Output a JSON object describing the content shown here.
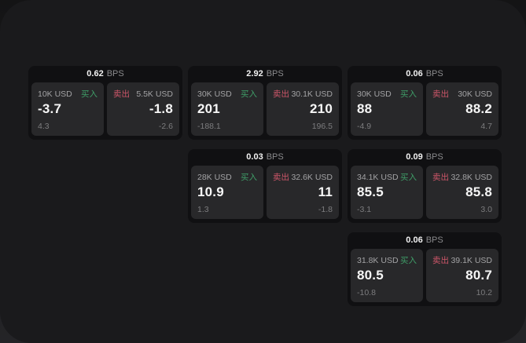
{
  "labels": {
    "bps_unit": "BPS",
    "buy": "买入",
    "sell": "卖出"
  },
  "colors": {
    "buy": "#3f9e68",
    "sell": "#cd5669",
    "window_bg": "#1a1a1c",
    "card_bg": "#101012",
    "panel_bg": "#28282a"
  },
  "cards": [
    {
      "bps": "0.62",
      "buy": {
        "amount": "10K USD",
        "value": "-3.7",
        "sub": "4.3"
      },
      "sell": {
        "amount": "5.5K USD",
        "value": "-1.8",
        "sub": "-2.6"
      }
    },
    {
      "bps": "2.92",
      "buy": {
        "amount": "30K USD",
        "value": "201",
        "sub": "-188.1"
      },
      "sell": {
        "amount": "30.1K USD",
        "value": "210",
        "sub": "196.5"
      }
    },
    {
      "bps": "0.06",
      "buy": {
        "amount": "30K USD",
        "value": "88",
        "sub": "-4.9"
      },
      "sell": {
        "amount": "30K USD",
        "value": "88.2",
        "sub": "4.7"
      }
    },
    {
      "bps": "0.03",
      "buy": {
        "amount": "28K USD",
        "value": "10.9",
        "sub": "1.3"
      },
      "sell": {
        "amount": "32.6K USD",
        "value": "11",
        "sub": "-1.8"
      }
    },
    {
      "bps": "0.09",
      "buy": {
        "amount": "34.1K USD",
        "value": "85.5",
        "sub": "-3.1"
      },
      "sell": {
        "amount": "32.8K USD",
        "value": "85.8",
        "sub": "3.0"
      }
    },
    {
      "bps": "0.06",
      "buy": {
        "amount": "31.8K USD",
        "value": "80.5",
        "sub": "-10.8"
      },
      "sell": {
        "amount": "39.1K USD",
        "value": "80.7",
        "sub": "10.2"
      }
    }
  ]
}
